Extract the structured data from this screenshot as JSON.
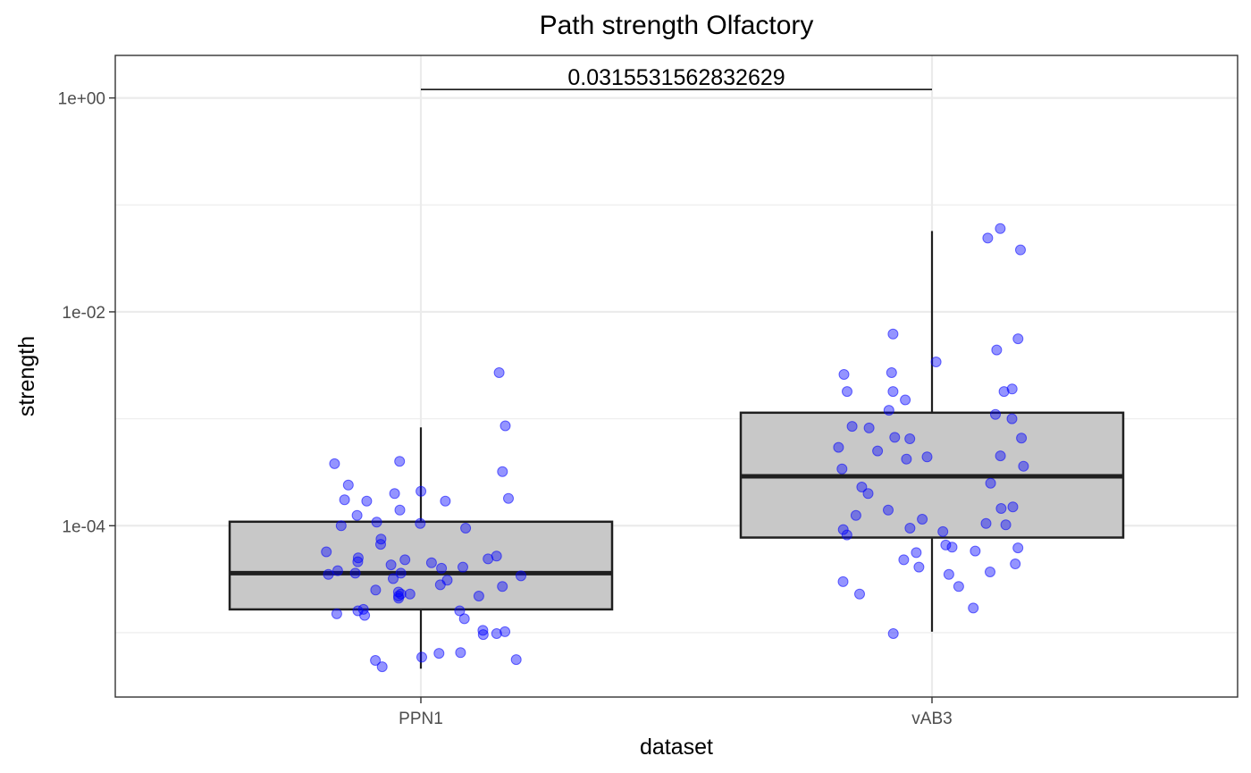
{
  "chart_data": {
    "type": "boxplot",
    "title": "Path strength Olfactory",
    "xlabel": "dataset",
    "ylabel": "strength",
    "y_scale": "log10",
    "ylim": [
      2.5e-06,
      2.5
    ],
    "y_ticks": [
      {
        "value": 1,
        "label": "1e+00"
      },
      {
        "value": 0.01,
        "label": "1e-02"
      },
      {
        "value": 0.0001,
        "label": "1e-04"
      }
    ],
    "y_minor_ticks": [
      0.1,
      0.001,
      1e-05
    ],
    "categories": [
      "PPN1",
      "vAB3"
    ],
    "grid": true,
    "colors": {
      "box_fill": "#c8c8c8",
      "box_stroke": "#1f1f1f",
      "point": "#0000ff",
      "grid": "#ebebeb",
      "panel_border": "#333333"
    },
    "boxes": [
      {
        "category": "PPN1",
        "whisker_low": 4.6e-06,
        "q1": 1.65e-05,
        "median": 3.6e-05,
        "q3": 0.000109,
        "whisker_high": 0.00083
      },
      {
        "category": "vAB3",
        "whisker_low": 1.02e-05,
        "q1": 7.75e-05,
        "median": 0.00029,
        "q3": 0.00114,
        "whisker_high": 0.057
      }
    ],
    "points": [
      {
        "category": "PPN1",
        "values": [
          0.0027,
          0.00086,
          0.00038,
          0.0004,
          0.00032,
          0.00024,
          0.0002,
          0.00021,
          0.00017,
          0.00017,
          0.000175,
          0.00018,
          0.00014,
          0.000125,
          0.000105,
          0.000108,
          0.0001,
          9.5e-05,
          7.5e-05,
          6.7e-05,
          5.7e-05,
          5.2e-05,
          5e-05,
          4.9e-05,
          4.8e-05,
          4.6e-05,
          4.5e-05,
          4.3e-05,
          4.1e-05,
          4e-05,
          3.8e-05,
          3.6e-05,
          3.6e-05,
          3.5e-05,
          3.4e-05,
          3.2e-05,
          3.1e-05,
          2.8e-05,
          2.7e-05,
          2.5e-05,
          2.4e-05,
          2.3e-05,
          2.2e-05,
          2.2e-05,
          2.3e-05,
          2.1e-05,
          1.65e-05,
          1.6e-05,
          1.6e-05,
          1.5e-05,
          1.45e-05,
          1.35e-05,
          1.05e-05,
          1.02e-05,
          9.8e-06,
          9.6e-06,
          6.5e-06,
          6.4e-06,
          5.9e-06,
          5.6e-06,
          5.5e-06,
          4.8e-06
        ]
      },
      {
        "category": "vAB3",
        "values": [
          0.06,
          0.049,
          0.038,
          0.0062,
          0.0056,
          0.0044,
          0.0034,
          0.0027,
          0.0026,
          0.0019,
          0.0018,
          0.0018,
          0.0018,
          0.0015,
          0.0012,
          0.0011,
          0.001,
          0.00085,
          0.00082,
          0.00067,
          0.00066,
          0.00065,
          0.00054,
          0.0005,
          0.00045,
          0.00044,
          0.00042,
          0.00036,
          0.00034,
          0.00025,
          0.00023,
          0.0002,
          0.00015,
          0.000145,
          0.00014,
          0.000125,
          0.000115,
          0.000105,
          0.000102,
          9.5e-05,
          9.2e-05,
          8.8e-05,
          8.2e-05,
          6.6e-05,
          6.3e-05,
          6.2e-05,
          5.8e-05,
          5.6e-05,
          4.8e-05,
          4.4e-05,
          4.1e-05,
          3.7e-05,
          3.5e-05,
          3e-05,
          2.7e-05,
          2.3e-05,
          1.7e-05,
          9.8e-06
        ]
      }
    ],
    "annotation": {
      "label": "0.0315531562832629",
      "from": "PPN1",
      "to": "vAB3",
      "y": 1.2
    }
  }
}
